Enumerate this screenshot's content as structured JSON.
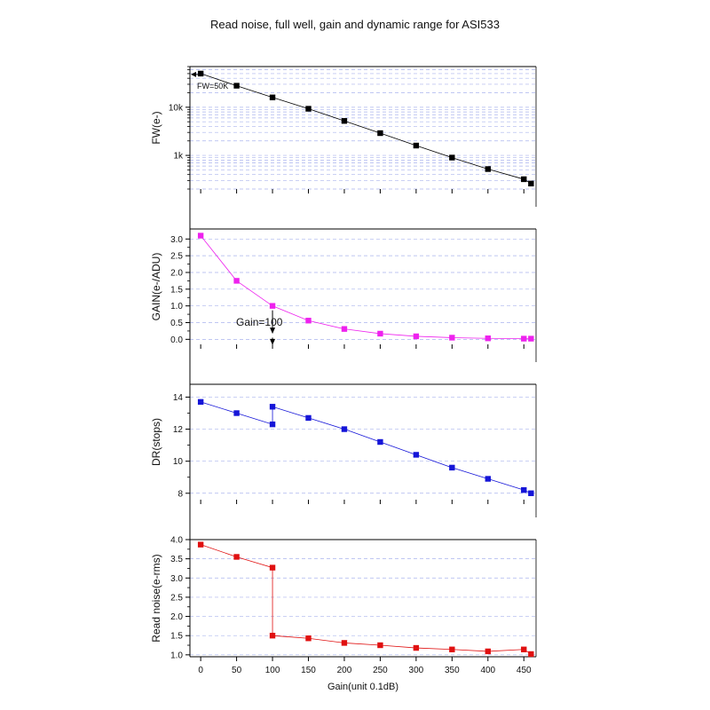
{
  "title": "Read noise, full well, gain and dynamic range for ASI533",
  "chart_data": [
    {
      "type": "scatter",
      "ylabel": "FW(e-)",
      "yscale": "log",
      "ylim": [
        200,
        70000
      ],
      "yticks": [
        {
          "v": 1000,
          "label": "1k"
        },
        {
          "v": 10000,
          "label": "10k"
        }
      ],
      "color": "#000000",
      "grid": true,
      "x": [
        0,
        50,
        100,
        150,
        200,
        250,
        300,
        350,
        400,
        450,
        460
      ],
      "y": [
        50000,
        28000,
        16000,
        9300,
        5200,
        2900,
        1600,
        900,
        520,
        320,
        260
      ],
      "annotation": "FW=50K"
    },
    {
      "type": "scatter",
      "ylabel": "GAIN(e-/ADU)",
      "ylim": [
        -0.15,
        3.3
      ],
      "yticks": [
        {
          "v": 0,
          "label": "0.0"
        },
        {
          "v": 0.5,
          "label": "0.5"
        },
        {
          "v": 1,
          "label": "1.0"
        },
        {
          "v": 1.5,
          "label": "1.5"
        },
        {
          "v": 2,
          "label": "2.0"
        },
        {
          "v": 2.5,
          "label": "2.5"
        },
        {
          "v": 3,
          "label": "3.0"
        }
      ],
      "color": "#ee22ee",
      "grid": true,
      "x": [
        0,
        50,
        100,
        150,
        200,
        250,
        300,
        350,
        400,
        450,
        460
      ],
      "y": [
        3.1,
        1.75,
        1.0,
        0.56,
        0.31,
        0.17,
        0.09,
        0.05,
        0.03,
        0.02,
        0.02
      ],
      "annotation": "Gain=100"
    },
    {
      "type": "scatter",
      "ylabel": "DR(stops)",
      "ylim": [
        7.6,
        14.8
      ],
      "yticks": [
        {
          "v": 8,
          "label": "8"
        },
        {
          "v": 10,
          "label": "10"
        },
        {
          "v": 12,
          "label": "12"
        },
        {
          "v": 14,
          "label": "14"
        }
      ],
      "color": "#1515d8",
      "grid": true,
      "x": [
        0,
        50,
        100,
        100,
        150,
        200,
        250,
        300,
        350,
        400,
        450,
        460
      ],
      "y": [
        13.7,
        13.0,
        12.3,
        13.4,
        12.7,
        12.0,
        11.2,
        10.4,
        9.6,
        8.9,
        8.2,
        8.0
      ]
    },
    {
      "type": "scatter",
      "ylabel": "Read noise(e-rms)",
      "xlabel": "Gain(unit 0.1dB)",
      "ylim": [
        0.95,
        4.0
      ],
      "yticks": [
        {
          "v": 1,
          "label": "1.0"
        },
        {
          "v": 1.5,
          "label": "1.5"
        },
        {
          "v": 2,
          "label": "2.0"
        },
        {
          "v": 2.5,
          "label": "2.5"
        },
        {
          "v": 3,
          "label": "3.0"
        },
        {
          "v": 3.5,
          "label": "3.5"
        },
        {
          "v": 4,
          "label": "4.0"
        }
      ],
      "xticks": [
        0,
        50,
        100,
        150,
        200,
        250,
        300,
        350,
        400,
        450
      ],
      "color": "#e01010",
      "grid": true,
      "x": [
        0,
        50,
        100,
        100,
        150,
        200,
        250,
        300,
        350,
        400,
        450,
        460
      ],
      "y": [
        3.87,
        3.55,
        3.27,
        1.5,
        1.43,
        1.31,
        1.25,
        1.18,
        1.14,
        1.09,
        1.14,
        1.02
      ]
    }
  ]
}
